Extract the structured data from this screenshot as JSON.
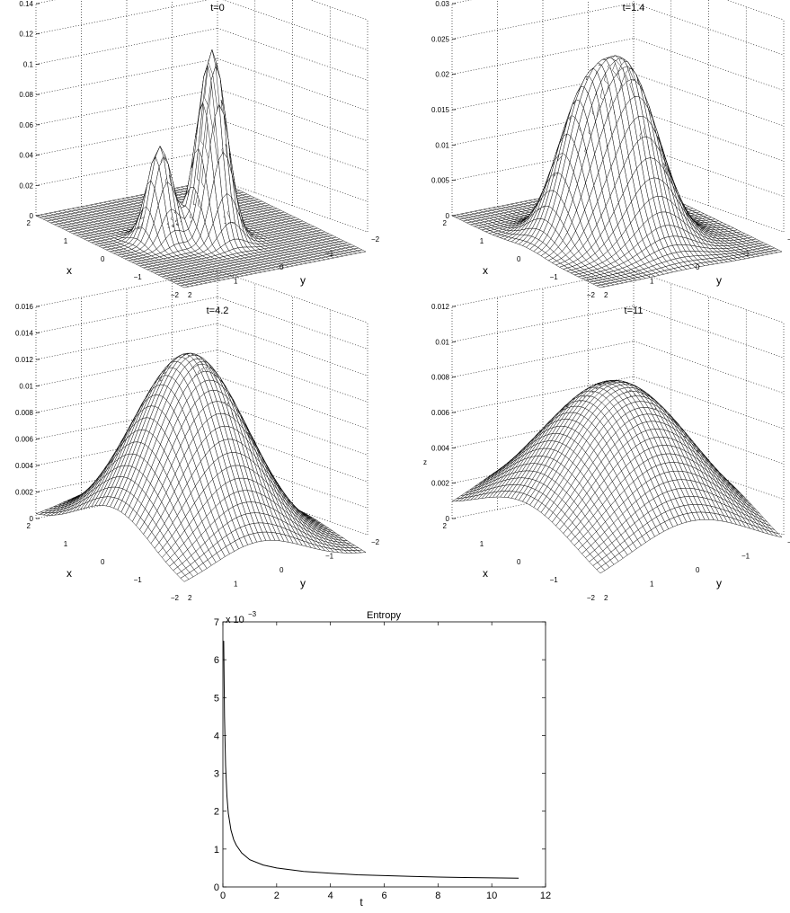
{
  "chart_data": [
    {
      "type": "surface",
      "title": "t=0",
      "xlabel": "x",
      "ylabel": "y",
      "zlabel": "",
      "xlim": [
        -2,
        2
      ],
      "ylim": [
        -2,
        2
      ],
      "zlim": [
        0,
        0.14
      ],
      "z_ticks": [
        "0",
        "0.02",
        "0.04",
        "0.06",
        "0.08",
        "0.1",
        "0.12",
        "0.14"
      ],
      "x_ticks": [
        "2",
        "1",
        "0",
        "−1",
        "−2"
      ],
      "y_ticks": [
        "2",
        "1",
        "0",
        "−1",
        "−2"
      ],
      "peaks": [
        {
          "x": 0.0,
          "y": 0.9,
          "height": 0.063,
          "width": 0.22
        },
        {
          "x": -0.3,
          "y": 0.0,
          "height": 0.125,
          "width": 0.25
        }
      ]
    },
    {
      "type": "surface",
      "title": "t=1.4",
      "xlabel": "x",
      "ylabel": "y",
      "zlabel": "",
      "xlim": [
        -2,
        2
      ],
      "ylim": [
        -2,
        2
      ],
      "zlim": [
        0,
        0.03
      ],
      "z_ticks": [
        "0",
        "0.005",
        "0.01",
        "0.015",
        "0.02",
        "0.025",
        "0.03"
      ],
      "x_ticks": [
        "2",
        "1",
        "0",
        "−1",
        "−2"
      ],
      "y_ticks": [
        "2",
        "1",
        "0",
        "−1",
        "−2"
      ],
      "peaks": [
        {
          "x": 0.0,
          "y": 0.85,
          "height": 0.015,
          "width": 0.45
        },
        {
          "x": -0.3,
          "y": 0.0,
          "height": 0.023,
          "width": 0.55
        }
      ]
    },
    {
      "type": "surface",
      "title": "t=4.2",
      "xlabel": "x",
      "ylabel": "y",
      "zlabel": "",
      "xlim": [
        -2,
        2
      ],
      "ylim": [
        -2,
        2
      ],
      "zlim": [
        0,
        0.016
      ],
      "z_ticks": [
        "0",
        "0.002",
        "0.004",
        "0.006",
        "0.008",
        "0.01",
        "0.012",
        "0.014",
        "0.016"
      ],
      "x_ticks": [
        "2",
        "1",
        "0",
        "−1",
        "−2"
      ],
      "y_ticks": [
        "2",
        "1",
        "0",
        "−1",
        "−2"
      ],
      "peaks": [
        {
          "x": -0.15,
          "y": 0.35,
          "height": 0.0142,
          "width": 1.0
        }
      ]
    },
    {
      "type": "surface",
      "title": "t=11",
      "xlabel": "x",
      "ylabel": "y",
      "zlabel": "z",
      "xlim": [
        -2,
        2
      ],
      "ylim": [
        -2,
        2
      ],
      "zlim": [
        0,
        0.012
      ],
      "z_ticks": [
        "0",
        "0.002",
        "0.004",
        "0.006",
        "0.008",
        "0.01",
        "0.012"
      ],
      "x_ticks": [
        "2",
        "1",
        "0",
        "−1",
        "−2"
      ],
      "y_ticks": [
        "2",
        "1",
        "0",
        "−1",
        "−2"
      ],
      "peaks": [
        {
          "x": 0.0,
          "y": 0.0,
          "height": 0.0087,
          "width": 1.35
        }
      ]
    },
    {
      "type": "line",
      "title": "Entropy",
      "xlabel": "t",
      "ylabel": "",
      "xlim": [
        0,
        12
      ],
      "ylim": [
        0,
        7
      ],
      "x_ticks": [
        "0",
        "2",
        "4",
        "6",
        "8",
        "10",
        "12"
      ],
      "y_ticks": [
        "0",
        "1",
        "2",
        "3",
        "4",
        "5",
        "6",
        "7"
      ],
      "y_multiplier_label": "x 10",
      "y_multiplier_exp": "−3",
      "series": [
        {
          "x": [
            0.03,
            0.06,
            0.1,
            0.15,
            0.2,
            0.3,
            0.4,
            0.5,
            0.7,
            1.0,
            1.5,
            2.0,
            3.0,
            4.0,
            5.0,
            6.0,
            7.0,
            8.0,
            9.0,
            10.0,
            11.0
          ],
          "values": [
            6.5,
            4.5,
            3.2,
            2.4,
            1.95,
            1.5,
            1.25,
            1.1,
            0.9,
            0.72,
            0.58,
            0.5,
            0.41,
            0.36,
            0.32,
            0.3,
            0.28,
            0.26,
            0.25,
            0.24,
            0.23
          ]
        }
      ]
    }
  ]
}
